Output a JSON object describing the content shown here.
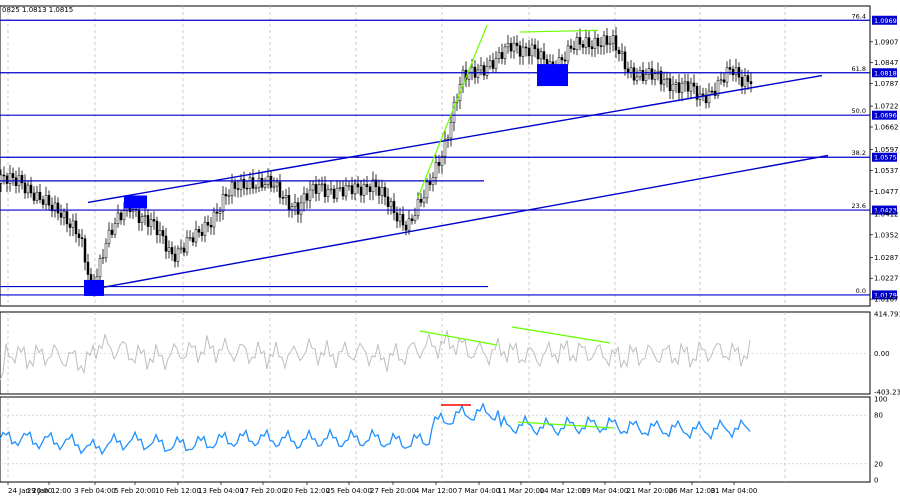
{
  "header": {
    "ohlc_text": "0825 1.0813 1.0815"
  },
  "chart_data": [
    {
      "type": "line",
      "title": "",
      "ylim": [
        1.015,
        1.101
      ],
      "price_axis_ticks": [
        "1.0969",
        "1.0907",
        "1.0847",
        "1.0818",
        "1.0787",
        "1.0722",
        "1.0696",
        "1.0662",
        "1.0597",
        "1.0575",
        "1.0537",
        "1.0477",
        "1.0423",
        "1.0412",
        "1.0352",
        "1.0287",
        "1.0227",
        "1.0179",
        "1.0167"
      ],
      "fib_levels": [
        {
          "name": "0.0",
          "price": 1.0179
        },
        {
          "name": "23.6",
          "price": 1.0423
        },
        {
          "name": "38.2",
          "price": 1.0575
        },
        {
          "name": "50.0",
          "price": 1.0696
        },
        {
          "name": "61.8",
          "price": 1.0818
        },
        {
          "name": "76.4",
          "price": 1.0969
        }
      ],
      "x_labels": [
        "24 Jan 2025",
        "24 Jan 20:00",
        "29 Jan 12:00",
        "3 Feb 04:00",
        "5 Feb 20:00",
        "10 Feb 12:00",
        "13 Feb 04:00",
        "17 Feb 20:00",
        "20 Feb 12:00",
        "25 Feb 04:00",
        "27 Feb 20:00",
        "4 Mar 12:00",
        "7 Mar 04:00",
        "11 Mar 20:00",
        "14 Mar 12:00",
        "19 Mar 04:00",
        "21 Mar 20:00",
        "26 Mar 12:00",
        "31 Mar 04:00"
      ],
      "colors": {
        "bull": "#ffffff",
        "bear": "#000000",
        "level": "#0000cc",
        "channel": "#0000cc",
        "marker": "#0000ff",
        "divergence": "#66ff00",
        "price_tag_bg": "#0000cc"
      }
    },
    {
      "type": "line",
      "title": "",
      "ylim": [
        -403.2341,
        414.7912
      ],
      "ticks": [
        "414.7912",
        "0.00",
        "-403.2341"
      ],
      "colors": {
        "line": "#bebebe",
        "divergence": "#66ff00"
      }
    },
    {
      "type": "line",
      "title": "",
      "ylim": [
        0,
        100
      ],
      "ticks": [
        "100",
        "80",
        "20",
        "0"
      ],
      "levels": [
        80,
        20
      ],
      "colors": {
        "line": "#1e90ff",
        "overbought_mark": "#ff0000",
        "divergence": "#66ff00"
      }
    }
  ]
}
